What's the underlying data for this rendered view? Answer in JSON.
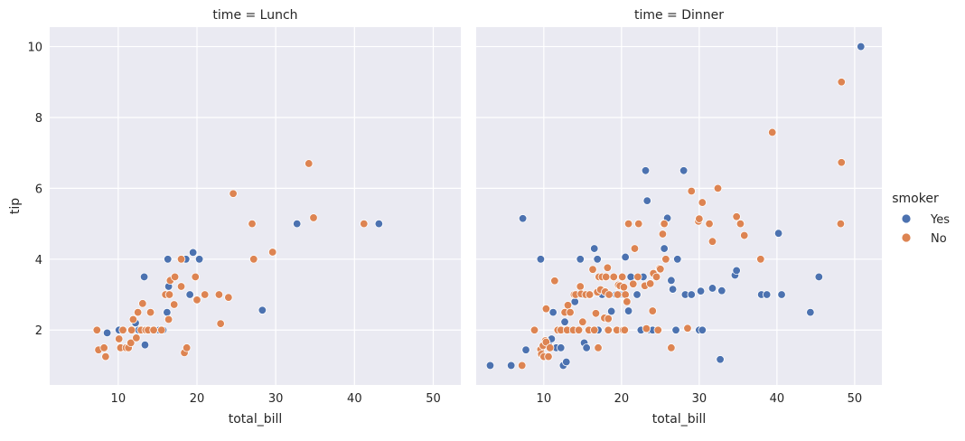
{
  "chart_data": {
    "type": "scatter",
    "facet_label": "time",
    "xlabel": "total_bill",
    "ylabel": "tip",
    "xlim": [
      1.3,
      53.5
    ],
    "ylim": [
      0.45,
      10.55
    ],
    "xticks": [
      10,
      20,
      30,
      40,
      50
    ],
    "yticks": [
      2,
      4,
      6,
      8,
      10
    ],
    "grid": true,
    "legend": {
      "title": "smoker",
      "placement": "right",
      "entries": [
        {
          "name": "Yes",
          "color": "#4c72b0"
        },
        {
          "name": "No",
          "color": "#dd8452"
        }
      ]
    },
    "panels": [
      {
        "title": "time = Lunch",
        "series": [
          {
            "name": "Yes",
            "color": "#4c72b0",
            "points": [
              [
                8.6,
                1.92
              ],
              [
                10.1,
                2.0
              ],
              [
                12.2,
                2.2
              ],
              [
                12.6,
                2.0
              ],
              [
                13.3,
                2.0
              ],
              [
                13.3,
                3.5
              ],
              [
                13.4,
                1.58
              ],
              [
                13.6,
                2.0
              ],
              [
                15.2,
                2.0
              ],
              [
                15.7,
                2.0
              ],
              [
                16.2,
                2.5
              ],
              [
                16.3,
                4.0
              ],
              [
                16.4,
                3.23
              ],
              [
                18.3,
                4.0
              ],
              [
                18.6,
                4.0
              ],
              [
                19.1,
                3.0
              ],
              [
                19.5,
                4.19
              ],
              [
                20.3,
                4.0
              ],
              [
                28.3,
                2.56
              ],
              [
                32.7,
                5.0
              ],
              [
                43.1,
                5.0
              ]
            ]
          },
          {
            "name": "No",
            "color": "#dd8452",
            "points": [
              [
                7.3,
                2.0
              ],
              [
                7.5,
                1.44
              ],
              [
                8.2,
                1.5
              ],
              [
                8.4,
                1.25
              ],
              [
                10.1,
                1.75
              ],
              [
                10.3,
                1.5
              ],
              [
                10.6,
                2.0
              ],
              [
                11.0,
                1.5
              ],
              [
                11.3,
                1.5
              ],
              [
                11.6,
                1.64
              ],
              [
                11.7,
                2.0
              ],
              [
                11.9,
                2.3
              ],
              [
                12.3,
                1.78
              ],
              [
                12.5,
                2.5
              ],
              [
                12.9,
                2.0
              ],
              [
                13.1,
                2.75
              ],
              [
                13.5,
                2.0
              ],
              [
                13.8,
                2.0
              ],
              [
                14.1,
                2.5
              ],
              [
                14.5,
                2.0
              ],
              [
                15.5,
                2.0
              ],
              [
                16.0,
                3.0
              ],
              [
                16.4,
                2.3
              ],
              [
                16.5,
                3.0
              ],
              [
                16.6,
                3.4
              ],
              [
                17.1,
                2.72
              ],
              [
                17.2,
                3.5
              ],
              [
                18.0,
                4.0
              ],
              [
                18.0,
                3.23
              ],
              [
                18.4,
                1.36
              ],
              [
                18.7,
                1.5
              ],
              [
                19.8,
                3.5
              ],
              [
                20.0,
                2.85
              ],
              [
                21.0,
                3.0
              ],
              [
                22.8,
                3.0
              ],
              [
                23.0,
                2.18
              ],
              [
                24.0,
                2.92
              ],
              [
                24.6,
                5.85
              ],
              [
                27.0,
                5.0
              ],
              [
                27.2,
                4.0
              ],
              [
                29.6,
                4.2
              ],
              [
                34.2,
                6.7
              ],
              [
                34.8,
                5.17
              ],
              [
                41.2,
                5.0
              ]
            ]
          }
        ]
      },
      {
        "title": "time = Dinner",
        "series": [
          {
            "name": "Yes",
            "color": "#4c72b0",
            "points": [
              [
                3.1,
                1.0
              ],
              [
                5.8,
                1.0
              ],
              [
                7.3,
                5.15
              ],
              [
                7.7,
                1.44
              ],
              [
                9.6,
                4.0
              ],
              [
                10.6,
                1.61
              ],
              [
                11.0,
                1.75
              ],
              [
                11.2,
                2.5
              ],
              [
                11.6,
                1.5
              ],
              [
                12.2,
                1.5
              ],
              [
                12.5,
                1.0
              ],
              [
                12.7,
                2.23
              ],
              [
                12.9,
                1.1
              ],
              [
                13.0,
                2.5
              ],
              [
                13.3,
                2.0
              ],
              [
                14.0,
                2.8
              ],
              [
                14.7,
                4.0
              ],
              [
                15.0,
                3.0
              ],
              [
                15.2,
                1.64
              ],
              [
                15.5,
                1.5
              ],
              [
                16.0,
                3.0
              ],
              [
                16.5,
                4.3
              ],
              [
                16.9,
                4.0
              ],
              [
                17.0,
                2.0
              ],
              [
                17.3,
                3.5
              ],
              [
                17.5,
                3.0
              ],
              [
                18.4,
                2.0
              ],
              [
                18.7,
                2.53
              ],
              [
                19.3,
                3.0
              ],
              [
                19.8,
                3.0
              ],
              [
                20.3,
                3.0
              ],
              [
                20.5,
                4.06
              ],
              [
                20.9,
                2.54
              ],
              [
                21.2,
                3.5
              ],
              [
                22.0,
                3.0
              ],
              [
                22.5,
                2.0
              ],
              [
                22.8,
                3.5
              ],
              [
                23.1,
                6.5
              ],
              [
                23.3,
                5.65
              ],
              [
                23.7,
                2.0
              ],
              [
                24.0,
                2.0
              ],
              [
                25.4,
                5.0
              ],
              [
                25.5,
                4.3
              ],
              [
                25.9,
                5.16
              ],
              [
                26.4,
                3.4
              ],
              [
                26.6,
                3.15
              ],
              [
                27.0,
                2.0
              ],
              [
                27.2,
                4.0
              ],
              [
                28.0,
                6.5
              ],
              [
                28.2,
                3.0
              ],
              [
                29.0,
                3.0
              ],
              [
                30.0,
                2.0
              ],
              [
                30.2,
                3.1
              ],
              [
                30.4,
                2.0
              ],
              [
                31.7,
                3.18
              ],
              [
                32.7,
                1.17
              ],
              [
                32.9,
                3.11
              ],
              [
                34.6,
                3.55
              ],
              [
                34.8,
                3.68
              ],
              [
                38.0,
                3.0
              ],
              [
                38.7,
                3.0
              ],
              [
                40.2,
                4.73
              ],
              [
                40.6,
                3.0
              ],
              [
                44.3,
                2.5
              ],
              [
                45.4,
                3.5
              ],
              [
                50.8,
                10.0
              ]
            ]
          },
          {
            "name": "No",
            "color": "#dd8452",
            "points": [
              [
                7.2,
                1.0
              ],
              [
                8.8,
                2.0
              ],
              [
                9.6,
                1.45
              ],
              [
                9.7,
                1.32
              ],
              [
                9.9,
                1.56
              ],
              [
                10.0,
                1.25
              ],
              [
                10.2,
                1.7
              ],
              [
                10.3,
                2.6
              ],
              [
                10.3,
                1.66
              ],
              [
                10.6,
                1.25
              ],
              [
                10.8,
                1.5
              ],
              [
                11.4,
                3.39
              ],
              [
                11.8,
                2.0
              ],
              [
                12.2,
                2.0
              ],
              [
                12.7,
                2.5
              ],
              [
                13.0,
                2.0
              ],
              [
                13.1,
                2.7
              ],
              [
                13.4,
                2.5
              ],
              [
                13.8,
                2.0
              ],
              [
                13.9,
                3.0
              ],
              [
                14.1,
                3.0
              ],
              [
                14.5,
                2.0
              ],
              [
                14.7,
                3.23
              ],
              [
                14.8,
                3.02
              ],
              [
                15.0,
                2.23
              ],
              [
                15.4,
                3.0
              ],
              [
                15.8,
                2.0
              ],
              [
                15.9,
                3.0
              ],
              [
                16.3,
                3.71
              ],
              [
                16.5,
                2.0
              ],
              [
                16.7,
                2.47
              ],
              [
                16.9,
                3.07
              ],
              [
                17.0,
                1.5
              ],
              [
                17.1,
                3.5
              ],
              [
                17.3,
                3.14
              ],
              [
                17.5,
                3.5
              ],
              [
                17.8,
                2.34
              ],
              [
                17.9,
                3.08
              ],
              [
                18.0,
                3.5
              ],
              [
                18.2,
                3.76
              ],
              [
                18.3,
                2.32
              ],
              [
                18.3,
                2.0
              ],
              [
                18.4,
                3.0
              ],
              [
                19.0,
                3.5
              ],
              [
                19.4,
                2.0
              ],
              [
                19.5,
                3.0
              ],
              [
                19.6,
                3.27
              ],
              [
                19.8,
                3.25
              ],
              [
                20.1,
                3.5
              ],
              [
                20.2,
                2.0
              ],
              [
                20.3,
                3.21
              ],
              [
                20.4,
                2.0
              ],
              [
                20.5,
                3.0
              ],
              [
                20.7,
                2.8
              ],
              [
                20.9,
                5.0
              ],
              [
                21.5,
                3.3
              ],
              [
                21.7,
                4.3
              ],
              [
                22.1,
                3.5
              ],
              [
                22.2,
                5.0
              ],
              [
                23.0,
                3.25
              ],
              [
                23.2,
                2.04
              ],
              [
                23.7,
                3.31
              ],
              [
                24.0,
                2.54
              ],
              [
                24.1,
                3.6
              ],
              [
                24.5,
                3.5
              ],
              [
                24.7,
                2.0
              ],
              [
                24.9,
                3.74
              ],
              [
                25.0,
                3.72
              ],
              [
                25.3,
                4.71
              ],
              [
                25.5,
                5.0
              ],
              [
                25.7,
                4.0
              ],
              [
                26.4,
                1.5
              ],
              [
                28.5,
                2.05
              ],
              [
                29.0,
                5.92
              ],
              [
                29.9,
                5.07
              ],
              [
                30.0,
                5.14
              ],
              [
                30.4,
                5.6
              ],
              [
                31.3,
                5.0
              ],
              [
                31.7,
                4.5
              ],
              [
                32.4,
                6.0
              ],
              [
                34.8,
                5.2
              ],
              [
                35.3,
                5.0
              ],
              [
                35.8,
                4.67
              ],
              [
                37.9,
                4.0
              ],
              [
                39.4,
                7.58
              ],
              [
                48.2,
                5.0
              ],
              [
                48.3,
                6.73
              ],
              [
                48.3,
                9.0
              ]
            ]
          }
        ]
      }
    ]
  }
}
